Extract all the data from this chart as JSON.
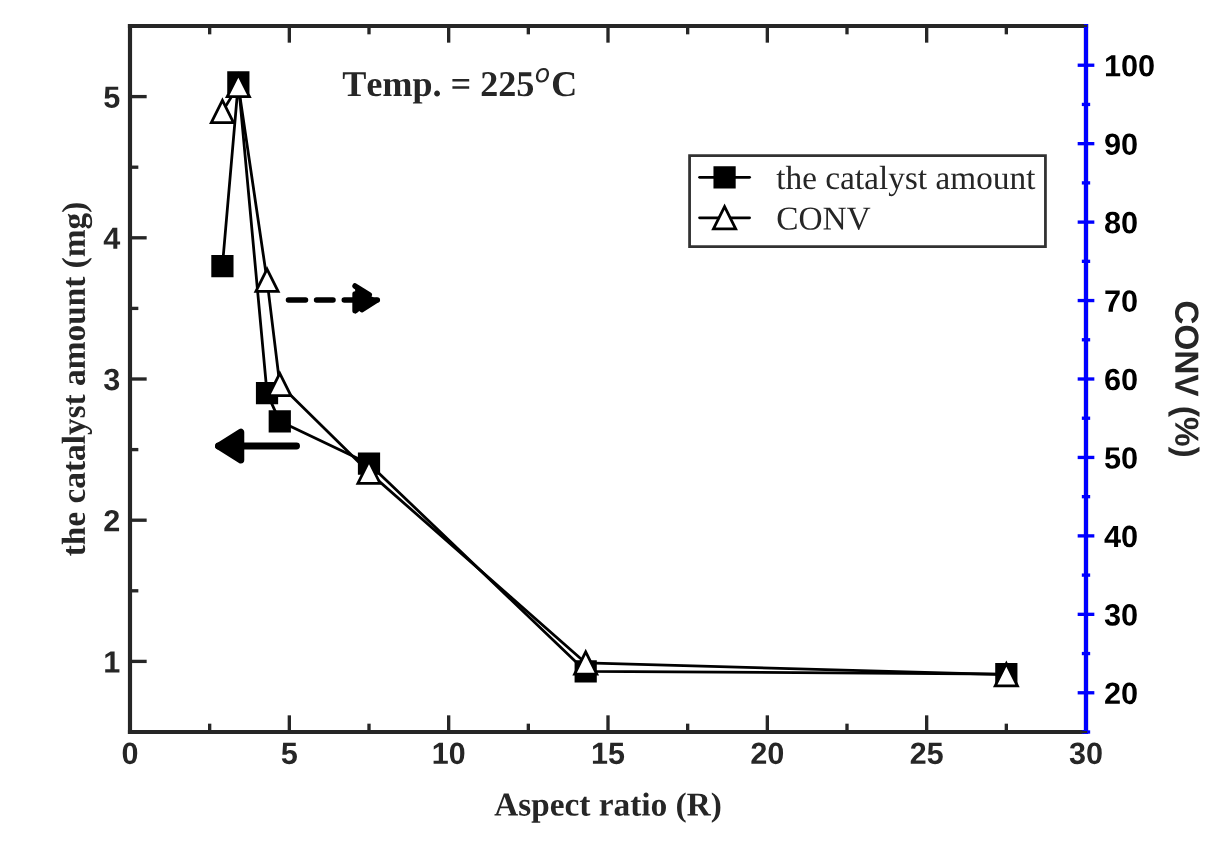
{
  "chart_data": {
    "type": "line",
    "xlabel": "Aspect ratio (R)",
    "ylabel": "the catalyst amount (mg)",
    "y2label": "CONV (%)",
    "annotations": [
      "Temp. = 225$^{o}$C"
    ],
    "xlim": [
      0,
      30
    ],
    "xticks": [
      0,
      5,
      10,
      15,
      20,
      25,
      30
    ],
    "ylim": [
      0.5,
      5.5
    ],
    "yticks": [
      1,
      2,
      3,
      4,
      5
    ],
    "y2lim": [
      15,
      105
    ],
    "y2ticks": [
      20,
      30,
      40,
      50,
      60,
      70,
      80,
      90,
      100
    ],
    "legend": "top right",
    "grid": false,
    "series": [
      {
        "name": "the catalyst amount",
        "color": "#000000",
        "marker": "square",
        "x": [
          2.9,
          3.4,
          4.3,
          4.7,
          7.5,
          14.3,
          27.5
        ],
        "values": [
          3.8,
          5.1,
          2.9,
          2.7,
          2.4,
          0.93,
          0.91
        ]
      },
      {
        "name": "CONV",
        "color": "#000000",
        "marker": "triangle",
        "axis": "y2",
        "x": [
          2.9,
          3.4,
          4.3,
          4.7,
          7.5,
          14.3,
          27.5
        ],
        "values": [
          94.1,
          97.4,
          72.6,
          59.3,
          48.1,
          23.8,
          22.3
        ]
      }
    ]
  }
}
